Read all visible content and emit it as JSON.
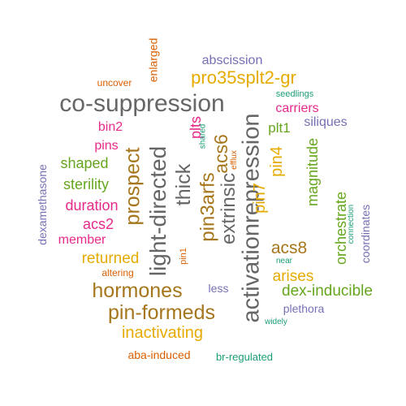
{
  "palette": {
    "orange": "#D95F02",
    "purple": "#7570B3",
    "magenta": "#E7298A",
    "green": "#66A61E",
    "gold": "#E6AB02",
    "brown": "#A6761D",
    "gray": "#666666",
    "teal": "#1B9E77"
  },
  "words": [
    {
      "text": "co-suppression",
      "color": "gray"
    },
    {
      "text": "activationrepression",
      "color": "gray"
    },
    {
      "text": "light-directed",
      "color": "gray"
    },
    {
      "text": "prospect",
      "color": "brown"
    },
    {
      "text": "thick",
      "color": "gray"
    },
    {
      "text": "pin3arfs",
      "color": "brown"
    },
    {
      "text": "extrinsic",
      "color": "gray"
    },
    {
      "text": "hormones",
      "color": "brown"
    },
    {
      "text": "pin-formeds",
      "color": "brown"
    },
    {
      "text": "pro35splt2-gr",
      "color": "gold"
    },
    {
      "text": "acs6",
      "color": "brown"
    },
    {
      "text": "plts",
      "color": "magenta"
    },
    {
      "text": "pin7",
      "color": "gold"
    },
    {
      "text": "pin4",
      "color": "gold"
    },
    {
      "text": "acs8",
      "color": "brown"
    },
    {
      "text": "inactivating",
      "color": "gold"
    },
    {
      "text": "dex-inducible",
      "color": "green"
    },
    {
      "text": "arises",
      "color": "gold"
    },
    {
      "text": "returned",
      "color": "gold"
    },
    {
      "text": "magnitude",
      "color": "green"
    },
    {
      "text": "orchestrate",
      "color": "green"
    },
    {
      "text": "shaped",
      "color": "green"
    },
    {
      "text": "sterility",
      "color": "green"
    },
    {
      "text": "duration",
      "color": "magenta"
    },
    {
      "text": "acs2",
      "color": "magenta"
    },
    {
      "text": "member",
      "color": "magenta"
    },
    {
      "text": "bin2",
      "color": "magenta"
    },
    {
      "text": "pins",
      "color": "magenta"
    },
    {
      "text": "carriers",
      "color": "magenta"
    },
    {
      "text": "plt1",
      "color": "green"
    },
    {
      "text": "siliques",
      "color": "purple"
    },
    {
      "text": "coordinates",
      "color": "purple"
    },
    {
      "text": "plethora",
      "color": "purple"
    },
    {
      "text": "abscission",
      "color": "purple"
    },
    {
      "text": "dexamethasone",
      "color": "purple"
    },
    {
      "text": "less",
      "color": "purple"
    },
    {
      "text": "enlarged",
      "color": "orange"
    },
    {
      "text": "uncover",
      "color": "orange"
    },
    {
      "text": "aba-induced",
      "color": "orange"
    },
    {
      "text": "altering",
      "color": "orange"
    },
    {
      "text": "pin1",
      "color": "orange"
    },
    {
      "text": "efflux",
      "color": "orange"
    },
    {
      "text": "seedlings",
      "color": "teal"
    },
    {
      "text": "shared",
      "color": "teal"
    },
    {
      "text": "connection",
      "color": "teal"
    },
    {
      "text": "near",
      "color": "teal"
    },
    {
      "text": "widely",
      "color": "teal"
    },
    {
      "text": "br-regulated",
      "color": "teal"
    }
  ]
}
